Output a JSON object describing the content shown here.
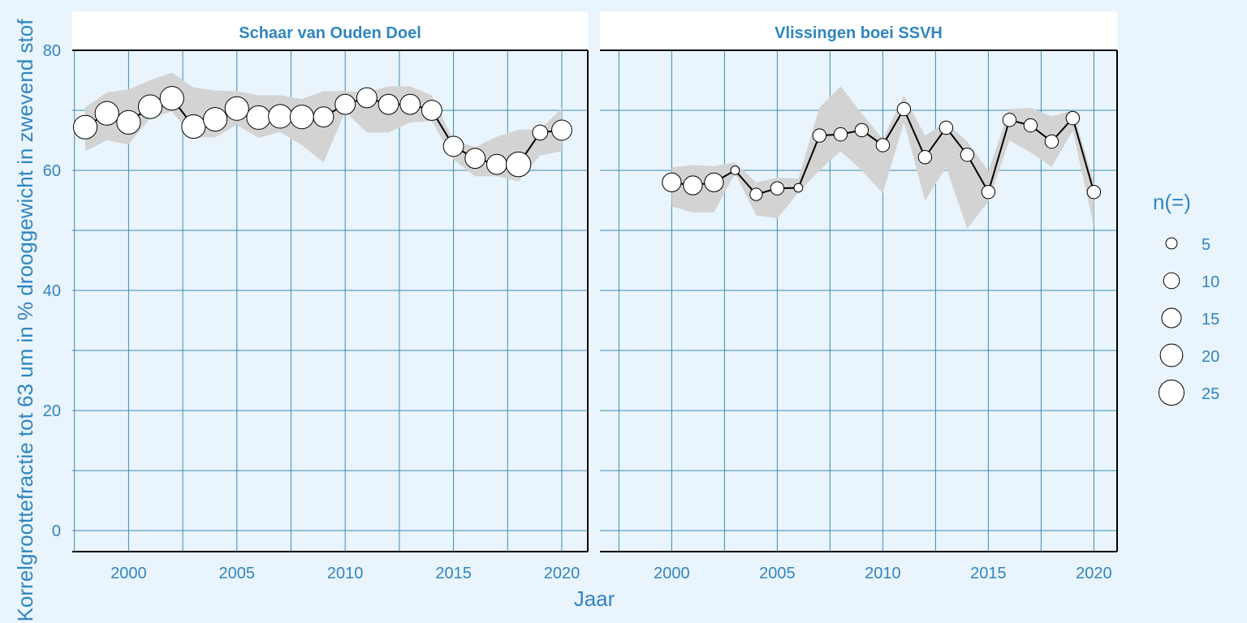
{
  "chart_data": {
    "type": "line",
    "xlabel": "Jaar",
    "ylabel": "Korrelgroottefractie tot 63 um in % drooggewicht in zwevend stof",
    "ylim": [
      -3.5,
      80
    ],
    "y_ticks": [
      0,
      20,
      40,
      60,
      80
    ],
    "x_ticks": [
      2000,
      2005,
      2010,
      2015,
      2020
    ],
    "grid": true,
    "legend": {
      "title": "n(=)",
      "placement": "right",
      "items": [
        {
          "label": "5",
          "n": 5
        },
        {
          "label": "10",
          "n": 10
        },
        {
          "label": "15",
          "n": 15
        },
        {
          "label": "20",
          "n": 20
        },
        {
          "label": "25",
          "n": 25
        }
      ]
    },
    "panels": [
      {
        "title": "Schaar van Ouden Doel",
        "xlim": [
          1997.4,
          2021.2
        ],
        "series": [
          {
            "x": [
              1998,
              1999,
              2000,
              2001,
              2002,
              2003,
              2004,
              2005,
              2006,
              2007,
              2008,
              2009,
              2010,
              2011,
              2012,
              2013,
              2014,
              2015,
              2016,
              2017,
              2018,
              2019,
              2020
            ],
            "y": [
              67.2,
              69.5,
              68,
              70.6,
              72,
              67.3,
              68.5,
              70.3,
              68.8,
              69,
              68.9,
              68.9,
              71,
              72.1,
              71,
              71,
              70,
              64,
              62,
              61,
              61,
              66.3,
              66.7
            ],
            "n": [
              22,
              22,
              22,
              22,
              22,
              22,
              22,
              22,
              22,
              22,
              22,
              16,
              16,
              16,
              16,
              16,
              16,
              16,
              16,
              16,
              24,
              9,
              16
            ],
            "lower": [
              63.2,
              65,
              64.3,
              68.7,
              69.8,
              65.5,
              65.5,
              67.6,
              65.4,
              66.4,
              64.2,
              61.3,
              69.8,
              66.3,
              66.3,
              68,
              68.2,
              61.8,
              59,
              59,
              58.2,
              62.5,
              63.2
            ],
            "upper": [
              70.5,
              73,
              73.5,
              75,
              76.3,
              73.8,
              73.3,
              73.2,
              72.5,
              72.5,
              71.9,
              73.2,
              73.2,
              73,
              74,
              74,
              72.5,
              65,
              63.9,
              65.6,
              66.8,
              66.8,
              70.4
            ]
          }
        ]
      },
      {
        "title": "Vlissingen boei SSVH",
        "xlim": [
          1996.6,
          2021.1
        ],
        "series": [
          {
            "x": [
              2000,
              2001,
              2002,
              2003,
              2004,
              2005,
              2006,
              2007,
              2008,
              2009,
              2010,
              2011,
              2012,
              2013,
              2014,
              2015,
              2016,
              2017,
              2018,
              2019,
              2020
            ],
            "y": [
              58,
              57.5,
              58,
              60,
              56,
              57,
              57.1,
              65.8,
              66,
              66.7,
              64.2,
              70.2,
              62.2,
              67.1,
              62.6,
              56.4,
              68.4,
              67.5,
              64.8,
              68.7,
              56.4
            ],
            "n": [
              14,
              14,
              14,
              3,
              6,
              7,
              3,
              7,
              7,
              7,
              7,
              7,
              7,
              7,
              7,
              7,
              7,
              7,
              7,
              7,
              7
            ],
            "lower": [
              54,
              53,
              53,
              59.5,
              52.5,
              52,
              56.3,
              60,
              63.2,
              60,
              56.2,
              68,
              55,
              60.5,
              50.3,
              54.8,
              65,
              63,
              60.6,
              66.6,
              50.6
            ],
            "upper": [
              60.5,
              60.9,
              60.7,
              61.3,
              58,
              58.8,
              58.6,
              70.5,
              74,
              69.5,
              65.2,
              72.5,
              65.8,
              68,
              64.8,
              59.9,
              70.2,
              70.4,
              69,
              70,
              58.1
            ]
          }
        ]
      }
    ]
  }
}
